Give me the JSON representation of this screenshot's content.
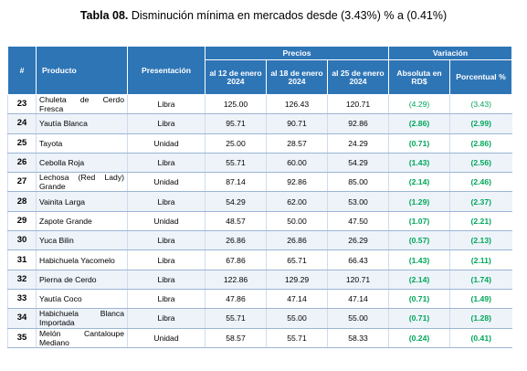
{
  "caption": {
    "label": "Tabla 08.",
    "text": "Disminución mínima en mercados desde (3.43%) % a (0.41%)"
  },
  "headers": {
    "num": "#",
    "producto": "Producto",
    "presentacion": "Presentación",
    "precios": "Precios",
    "variacion": "Variación",
    "date1": "al 12 de enero 2024",
    "date2": "al 18 de enero 2024",
    "date3": "al 25 de enero 2024",
    "absoluta": "Absoluta en RD$",
    "porcentual": "Porcentual %"
  },
  "rows": [
    {
      "num": "23",
      "producto": "Chuleta de Cerdo Fresca",
      "presentacion": "Libra",
      "p1": "125.00",
      "p2": "126.43",
      "p3": "120.71",
      "abs": "(4.29)",
      "pct": "(3.43)"
    },
    {
      "num": "24",
      "producto": "Yautía Blanca",
      "presentacion": "Libra",
      "p1": "95.71",
      "p2": "90.71",
      "p3": "92.86",
      "abs": "(2.86)",
      "pct": "(2.99)"
    },
    {
      "num": "25",
      "producto": "Tayota",
      "presentacion": "Unidad",
      "p1": "25.00",
      "p2": "28.57",
      "p3": "24.29",
      "abs": "(0.71)",
      "pct": "(2.86)"
    },
    {
      "num": "26",
      "producto": "Cebolla Roja",
      "presentacion": "Libra",
      "p1": "55.71",
      "p2": "60.00",
      "p3": "54.29",
      "abs": "(1.43)",
      "pct": "(2.56)"
    },
    {
      "num": "27",
      "producto": "Lechosa (Red Lady) Grande",
      "presentacion": "Unidad",
      "p1": "87.14",
      "p2": "92.86",
      "p3": "85.00",
      "abs": "(2.14)",
      "pct": "(2.46)"
    },
    {
      "num": "28",
      "producto": "Vainita Larga",
      "presentacion": "Libra",
      "p1": "54.29",
      "p2": "62.00",
      "p3": "53.00",
      "abs": "(1.29)",
      "pct": "(2.37)"
    },
    {
      "num": "29",
      "producto": "Zapote Grande",
      "presentacion": "Unidad",
      "p1": "48.57",
      "p2": "50.00",
      "p3": "47.50",
      "abs": "(1.07)",
      "pct": "(2.21)"
    },
    {
      "num": "30",
      "producto": "Yuca Bilin",
      "presentacion": "Libra",
      "p1": "26.86",
      "p2": "26.86",
      "p3": "26.29",
      "abs": "(0.57)",
      "pct": "(2.13)"
    },
    {
      "num": "31",
      "producto": "Habichuela Yacomelo",
      "presentacion": "Libra",
      "p1": "67.86",
      "p2": "65.71",
      "p3": "66.43",
      "abs": "(1.43)",
      "pct": "(2.11)"
    },
    {
      "num": "32",
      "producto": "Pierna de Cerdo",
      "presentacion": "Libra",
      "p1": "122.86",
      "p2": "129.29",
      "p3": "120.71",
      "abs": "(2.14)",
      "pct": "(1.74)"
    },
    {
      "num": "33",
      "producto": "Yautía Coco",
      "presentacion": "Libra",
      "p1": "47.86",
      "p2": "47.14",
      "p3": "47.14",
      "abs": "(0.71)",
      "pct": "(1.49)"
    },
    {
      "num": "34",
      "producto": "Habichuela Blanca Importada",
      "presentacion": "Libra",
      "p1": "55.71",
      "p2": "55.00",
      "p3": "55.00",
      "abs": "(0.71)",
      "pct": "(1.28)"
    },
    {
      "num": "35",
      "producto": "Melón Cantaloupe Mediano",
      "presentacion": "Unidad",
      "p1": "58.57",
      "p2": "55.71",
      "p3": "58.33",
      "abs": "(0.24)",
      "pct": "(0.41)"
    }
  ]
}
